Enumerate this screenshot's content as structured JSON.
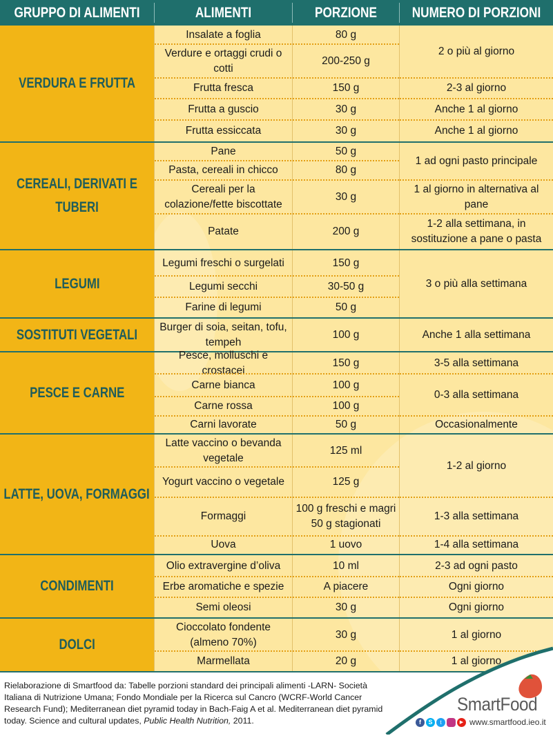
{
  "header": {
    "group": "GRUPPO DI ALIMENTI",
    "food": "ALIMENTI",
    "portion": "PORZIONE",
    "count": "NUMERO DI PORZIONI"
  },
  "groups": [
    {
      "name": "VERDURA E FRUTTA"
    },
    {
      "name": "CEREALI, DERIVATI E TUBERI"
    },
    {
      "name": "LEGUMI"
    },
    {
      "name": "SOSTITUTI VEGETALI"
    },
    {
      "name": "PESCE E CARNE"
    },
    {
      "name": "LATTE, UOVA, FORMAGGI"
    },
    {
      "name": "CONDIMENTI"
    },
    {
      "name": "DOLCI"
    }
  ],
  "rows": [
    {
      "food": "Insalate a foglia",
      "portion": "80 g"
    },
    {
      "food": "Verdure e ortaggi crudi o cotti",
      "portion": "200-250 g"
    },
    {
      "food": "Frutta fresca",
      "portion": "150 g"
    },
    {
      "food": "Frutta a guscio",
      "portion": "30 g"
    },
    {
      "food": "Frutta essiccata",
      "portion": "30 g"
    },
    {
      "food": "Pane",
      "portion": "50 g"
    },
    {
      "food": "Pasta, cereali in chicco",
      "portion": "80 g"
    },
    {
      "food": "Cereali per la colazione/fette biscottate",
      "portion": "30 g"
    },
    {
      "food": "Patate",
      "portion": "200 g"
    },
    {
      "food": "Legumi freschi o surgelati",
      "portion": "150 g"
    },
    {
      "food": "Legumi secchi",
      "portion": "30-50 g"
    },
    {
      "food": "Farine di legumi",
      "portion": "50 g"
    },
    {
      "food": "Burger di soia, seitan, tofu, tempeh",
      "portion": "100 g"
    },
    {
      "food": "Pesce, molluschi e crostacei",
      "portion": "150 g"
    },
    {
      "food": "Carne bianca",
      "portion": "100 g"
    },
    {
      "food": "Carne rossa",
      "portion": "100 g"
    },
    {
      "food": "Carni lavorate",
      "portion": "50 g"
    },
    {
      "food": "Latte vaccino o bevanda vegetale",
      "portion": "125 ml"
    },
    {
      "food": "Yogurt vaccino o vegetale",
      "portion": "125 g"
    },
    {
      "food": "Formaggi",
      "portion": "100 g freschi e magri 50 g stagionati"
    },
    {
      "food": "Uova",
      "portion": "1 uovo"
    },
    {
      "food": "Olio extravergine d’oliva",
      "portion": "10 ml"
    },
    {
      "food": "Erbe aromatiche e spezie",
      "portion": "A piacere"
    },
    {
      "food": "Semi oleosi",
      "portion": "30 g"
    },
    {
      "food": "Cioccolato fondente (almeno 70%)",
      "portion": "30 g"
    },
    {
      "food": "Marmellata",
      "portion": "20 g"
    }
  ],
  "counts": [
    "2 o più al giorno",
    "2-3 al giorno",
    "Anche 1 al giorno",
    "Anche 1 al giorno",
    "1 ad ogni pasto principale",
    "1 al giorno in alternativa al pane",
    "1-2 alla settimana, in sostituzione a pane o pasta",
    "3 o più alla settimana",
    "Anche 1 alla settimana",
    "3-5 alla settimana",
    "0-3 alla settimana",
    "Occasionalmente",
    "1-2 al giorno",
    "1-3 alla settimana",
    "1-4 alla settimana",
    "2-3 ad ogni pasto",
    "Ogni giorno",
    "Ogni giorno",
    "1 al giorno",
    "1 al giorno"
  ],
  "footer": {
    "text": "Rielaborazione di Smartfood da: Tabelle porzioni standard dei principali alimenti -LARN- Società Italiana di Nutrizione Umana; Fondo Mondiale per la Ricerca sul Cancro (WCRF-World Cancer Research Fund); Mediterranean diet pyramid today in Bach-Faig A et al. Mediterranean diet pyramid today. Science and cultural updates, ",
    "journal": "Public Health Nutrition,",
    "year": " 2011."
  },
  "logo": {
    "brand": "SmartFood",
    "url": "www.smartfood.ieo.it",
    "social_icons": [
      "facebook-icon",
      "skype-icon",
      "twitter-icon",
      "instagram-icon",
      "youtube-icon"
    ]
  },
  "colors": {
    "header_bg": "#1f6f6c",
    "group_bg": "#f2b516",
    "table_bg": "#fde7a0",
    "dotted_separator": "#e39e12"
  }
}
